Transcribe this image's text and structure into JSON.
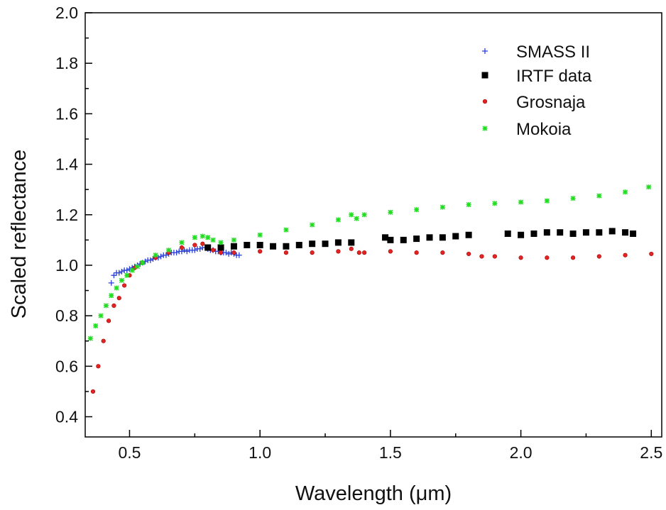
{
  "chart_data": {
    "type": "scatter",
    "title": "",
    "xlabel": "Wavelength (μm)",
    "ylabel": "Scaled reflectance",
    "xlim": [
      0.33,
      2.54
    ],
    "ylim": [
      0.32,
      2.0
    ],
    "x_ticks": [
      0.5,
      1.0,
      1.5,
      2.0,
      2.5
    ],
    "x_tick_labels": [
      "0.5",
      "1.0",
      "1.5",
      "2.0",
      "2.5"
    ],
    "y_ticks": [
      0.4,
      0.6,
      0.8,
      1.0,
      1.2,
      1.4,
      1.6,
      1.8,
      2.0
    ],
    "y_tick_labels": [
      "0.4",
      "0.6",
      "0.8",
      "1.0",
      "1.2",
      "1.4",
      "1.6",
      "1.8",
      "2.0"
    ],
    "grid": false,
    "legend_position": "top-right",
    "series": [
      {
        "name": "SMASS II",
        "marker": "plus",
        "color": "#2a3fd6",
        "x": [
          0.43,
          0.44,
          0.45,
          0.46,
          0.47,
          0.48,
          0.49,
          0.5,
          0.51,
          0.52,
          0.53,
          0.54,
          0.55,
          0.56,
          0.57,
          0.58,
          0.59,
          0.6,
          0.61,
          0.62,
          0.63,
          0.64,
          0.65,
          0.66,
          0.67,
          0.68,
          0.69,
          0.7,
          0.71,
          0.72,
          0.73,
          0.74,
          0.75,
          0.76,
          0.77,
          0.78,
          0.79,
          0.8,
          0.81,
          0.82,
          0.83,
          0.84,
          0.85,
          0.86,
          0.87,
          0.88,
          0.89,
          0.9,
          0.91,
          0.92
        ],
        "y": [
          0.93,
          0.96,
          0.97,
          0.97,
          0.975,
          0.98,
          0.98,
          0.985,
          0.99,
          0.995,
          1.0,
          1.005,
          1.01,
          1.015,
          1.02,
          1.02,
          1.025,
          1.03,
          1.03,
          1.035,
          1.04,
          1.04,
          1.045,
          1.05,
          1.05,
          1.05,
          1.055,
          1.055,
          1.06,
          1.055,
          1.06,
          1.06,
          1.06,
          1.065,
          1.065,
          1.07,
          1.07,
          1.065,
          1.06,
          1.06,
          1.055,
          1.055,
          1.05,
          1.05,
          1.05,
          1.045,
          1.05,
          1.045,
          1.04,
          1.04
        ]
      },
      {
        "name": "IRTF data",
        "marker": "square",
        "color": "#000000",
        "x": [
          0.8,
          0.85,
          0.9,
          0.95,
          1.0,
          1.05,
          1.1,
          1.15,
          1.2,
          1.25,
          1.3,
          1.35,
          1.48,
          1.5,
          1.55,
          1.6,
          1.65,
          1.7,
          1.75,
          1.8,
          1.95,
          2.0,
          2.05,
          2.1,
          2.15,
          2.2,
          2.25,
          2.3,
          2.35,
          2.4,
          2.43
        ],
        "y": [
          1.07,
          1.07,
          1.075,
          1.08,
          1.08,
          1.075,
          1.075,
          1.08,
          1.085,
          1.085,
          1.09,
          1.09,
          1.11,
          1.1,
          1.1,
          1.105,
          1.11,
          1.11,
          1.115,
          1.12,
          1.125,
          1.12,
          1.125,
          1.13,
          1.13,
          1.125,
          1.13,
          1.13,
          1.135,
          1.13,
          1.125
        ]
      },
      {
        "name": "Grosnaja",
        "marker": "circle",
        "color": "#e32424",
        "x": [
          0.36,
          0.38,
          0.4,
          0.42,
          0.44,
          0.46,
          0.48,
          0.5,
          0.52,
          0.55,
          0.6,
          0.65,
          0.7,
          0.75,
          0.78,
          0.82,
          0.85,
          0.9,
          1.0,
          1.1,
          1.2,
          1.3,
          1.35,
          1.38,
          1.4,
          1.5,
          1.6,
          1.7,
          1.8,
          1.85,
          1.9,
          2.0,
          2.1,
          2.2,
          2.3,
          2.4,
          2.5
        ],
        "y": [
          0.5,
          0.6,
          0.7,
          0.78,
          0.84,
          0.87,
          0.92,
          0.96,
          0.99,
          1.01,
          1.03,
          1.05,
          1.07,
          1.08,
          1.085,
          1.06,
          1.05,
          1.05,
          1.055,
          1.05,
          1.05,
          1.055,
          1.065,
          1.05,
          1.05,
          1.055,
          1.05,
          1.05,
          1.045,
          1.035,
          1.035,
          1.03,
          1.03,
          1.03,
          1.035,
          1.04,
          1.045
        ]
      },
      {
        "name": "Mokoia",
        "marker": "star",
        "color": "#22dd22",
        "x": [
          0.35,
          0.37,
          0.39,
          0.41,
          0.43,
          0.45,
          0.47,
          0.49,
          0.51,
          0.53,
          0.55,
          0.6,
          0.65,
          0.7,
          0.75,
          0.78,
          0.8,
          0.82,
          0.85,
          0.9,
          1.0,
          1.1,
          1.2,
          1.3,
          1.35,
          1.37,
          1.4,
          1.5,
          1.6,
          1.7,
          1.8,
          1.9,
          2.0,
          2.1,
          2.2,
          2.3,
          2.4,
          2.49
        ],
        "y": [
          0.71,
          0.76,
          0.8,
          0.84,
          0.88,
          0.91,
          0.94,
          0.96,
          0.98,
          0.995,
          1.01,
          1.04,
          1.06,
          1.09,
          1.11,
          1.115,
          1.11,
          1.1,
          1.09,
          1.1,
          1.12,
          1.14,
          1.16,
          1.18,
          1.2,
          1.185,
          1.2,
          1.21,
          1.22,
          1.23,
          1.24,
          1.245,
          1.25,
          1.255,
          1.265,
          1.275,
          1.29,
          1.31
        ]
      }
    ]
  }
}
